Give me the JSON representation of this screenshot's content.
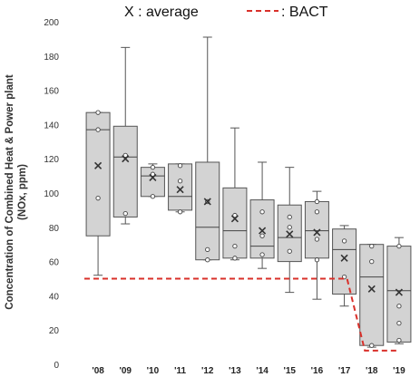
{
  "chart_data": {
    "type": "box",
    "ylabel_line1": "Concentration of Combined Heat & Power plant",
    "ylabel_line2": "(NOx, ppm)",
    "ylim": [
      0,
      200
    ],
    "yticks": [
      0,
      20,
      40,
      60,
      80,
      100,
      120,
      140,
      160,
      180,
      200
    ],
    "grid": false,
    "legend": {
      "position": "top",
      "average_label": "X : average",
      "bact_label": ": BACT"
    },
    "categories": [
      "'08",
      "'09",
      "'10",
      "'11",
      "'12",
      "'13",
      "'14",
      "'15",
      "'16",
      "'17",
      "'18",
      "'19"
    ],
    "boxes": [
      {
        "min": 52,
        "q1": 75,
        "median": 137,
        "q3": 147,
        "max": 147,
        "mean": 116,
        "points": [
          97,
          137,
          147
        ]
      },
      {
        "min": 82,
        "q1": 86,
        "median": 121,
        "q3": 139,
        "max": 185,
        "mean": 120,
        "points": [
          88,
          122
        ]
      },
      {
        "min": 98,
        "q1": 98,
        "median": 110,
        "q3": 115,
        "max": 117,
        "mean": 109,
        "points": [
          98,
          111,
          115
        ]
      },
      {
        "min": 89,
        "q1": 90,
        "median": 98,
        "q3": 117,
        "max": 117,
        "mean": 102,
        "points": [
          89,
          107,
          116
        ]
      },
      {
        "min": 61,
        "q1": 61,
        "median": 80,
        "q3": 118,
        "max": 191,
        "mean": 95,
        "points": [
          61,
          67,
          95
        ]
      },
      {
        "min": 61,
        "q1": 62,
        "median": 78,
        "q3": 103,
        "max": 138,
        "mean": 85,
        "points": [
          62,
          69,
          87
        ]
      },
      {
        "min": 56,
        "q1": 62,
        "median": 69,
        "q3": 96,
        "max": 118,
        "mean": 78,
        "points": [
          64,
          75,
          89
        ]
      },
      {
        "min": 42,
        "q1": 60,
        "median": 74,
        "q3": 93,
        "max": 115,
        "mean": 76,
        "points": [
          66,
          80,
          86
        ]
      },
      {
        "min": 38,
        "q1": 62,
        "median": 78,
        "q3": 95,
        "max": 101,
        "mean": 77,
        "points": [
          61,
          73,
          89,
          95
        ]
      },
      {
        "min": 34,
        "q1": 41,
        "median": 67,
        "q3": 79,
        "max": 81,
        "mean": 62,
        "points": [
          51,
          72
        ]
      },
      {
        "min": 10,
        "q1": 11,
        "median": 51,
        "q3": 70,
        "max": 70,
        "mean": 44,
        "points": [
          11,
          60,
          69
        ]
      },
      {
        "min": 12,
        "q1": 13,
        "median": 43,
        "q3": 69,
        "max": 74,
        "mean": 42,
        "points": [
          14,
          24,
          34,
          69
        ]
      }
    ],
    "bact": {
      "name": "BACT",
      "color": "#d9302a",
      "x": [
        "'08",
        "'09",
        "'10",
        "'11",
        "'12",
        "'13",
        "'14",
        "'15",
        "'16",
        "'17",
        "'18",
        "'19"
      ],
      "values": [
        50,
        50,
        50,
        50,
        50,
        50,
        50,
        50,
        50,
        50,
        8,
        8
      ]
    },
    "box_fill": "#d3d3d3",
    "box_stroke": "#555555"
  }
}
